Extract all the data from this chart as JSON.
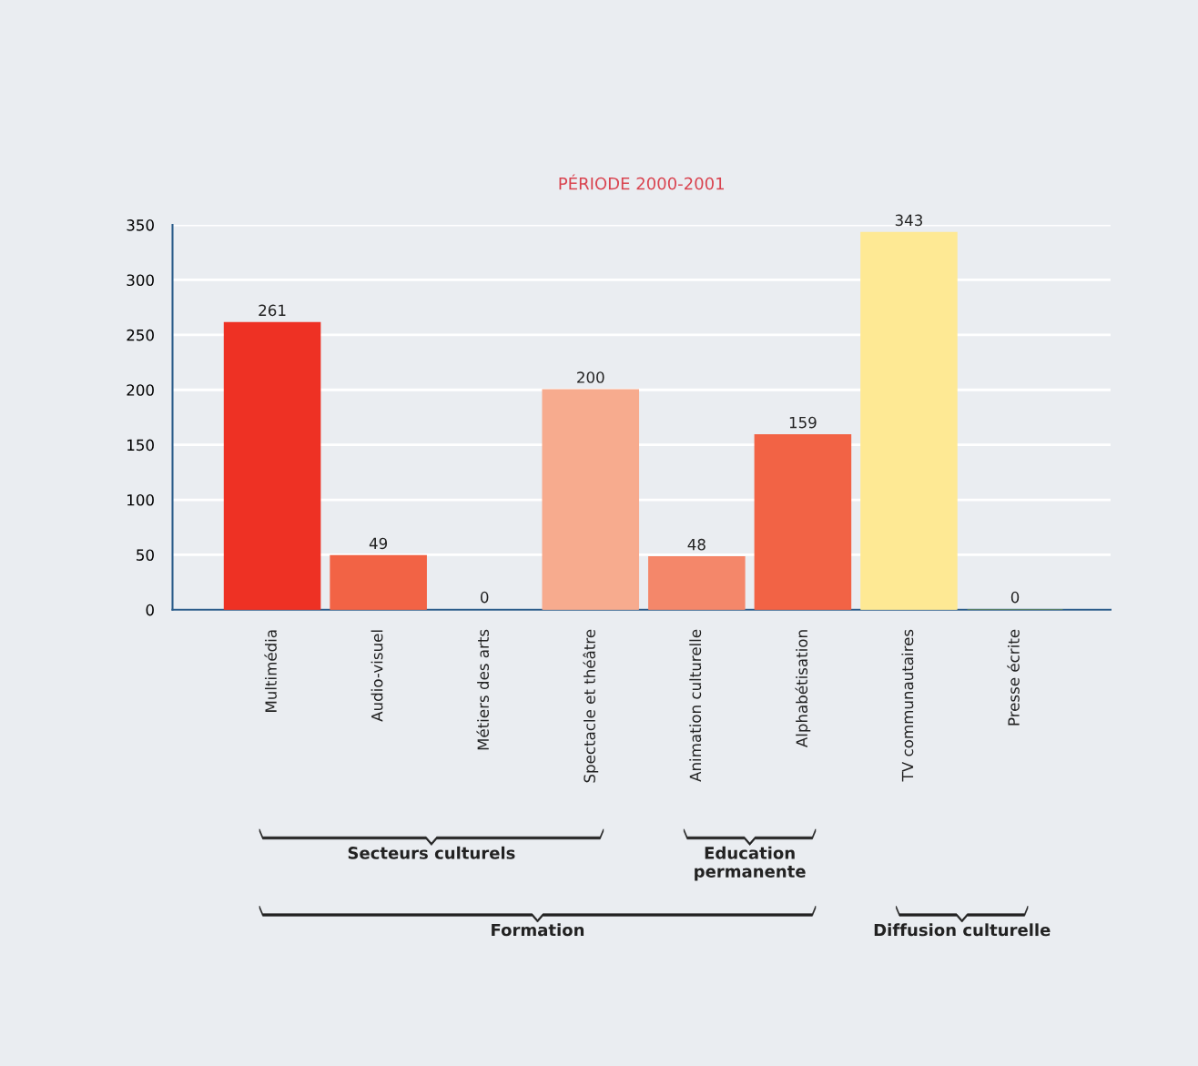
{
  "chart_data": {
    "type": "bar",
    "title": "PÉRIODE 2000-2001",
    "categories": [
      "Multimédia",
      "Audio-visuel",
      "Métiers des arts",
      "Spectacle et théâtre",
      "Animation culturelle",
      "Alphabétisation",
      "TV communautaires",
      "Presse écrite"
    ],
    "values": [
      261,
      49,
      0,
      200,
      48,
      159,
      343,
      0
    ],
    "colors": [
      "#ee3124",
      "#f26345",
      "#2b5c8a",
      "#f7ab8e",
      "#f4876a",
      "#f26345",
      "#fee994",
      "#6b8e5a"
    ],
    "ylim": [
      0,
      350
    ],
    "yticks": [
      0,
      50,
      100,
      150,
      200,
      250,
      300,
      350
    ],
    "grid": "y",
    "data_labels": true,
    "annotations": [
      "Secteurs culturels",
      "Education\npermanente",
      "Formation",
      "Diffusion culturelle"
    ]
  }
}
